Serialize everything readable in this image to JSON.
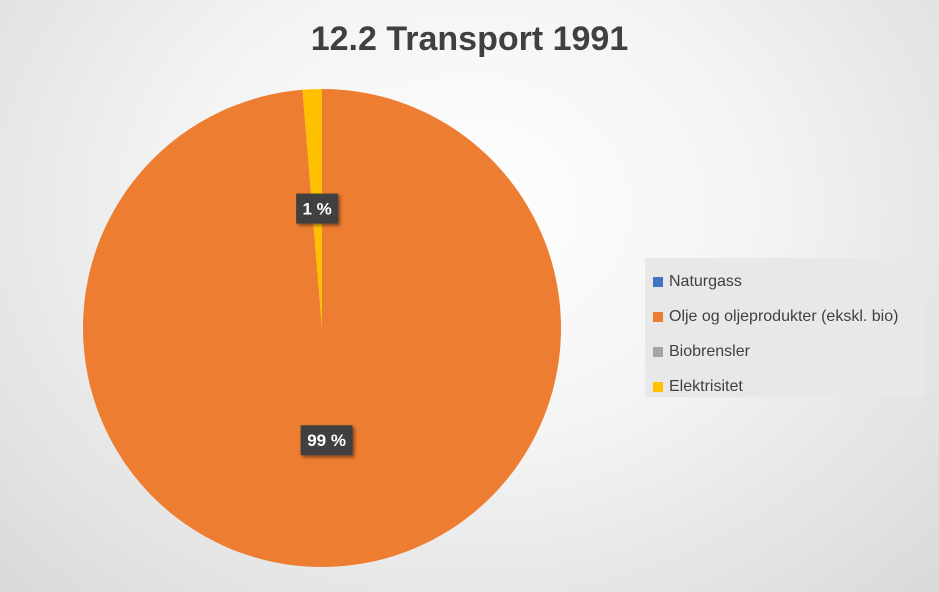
{
  "chart_data": {
    "type": "pie",
    "title": "12.2 Transport 1991",
    "categories": [
      "Naturgass",
      "Olje og oljeprodukter (ekskl. bio)",
      "Biobrensler",
      "Elektrisitet"
    ],
    "values": [
      0,
      98.7,
      0,
      1.3
    ],
    "data_labels": [
      "",
      "99 %",
      "",
      "1 %"
    ],
    "colors": [
      "#4472C4",
      "#ED7D31",
      "#A5A5A5",
      "#FFC000"
    ],
    "start_angle_deg": 0,
    "direction": "clockwise",
    "legend_placement": "right"
  }
}
